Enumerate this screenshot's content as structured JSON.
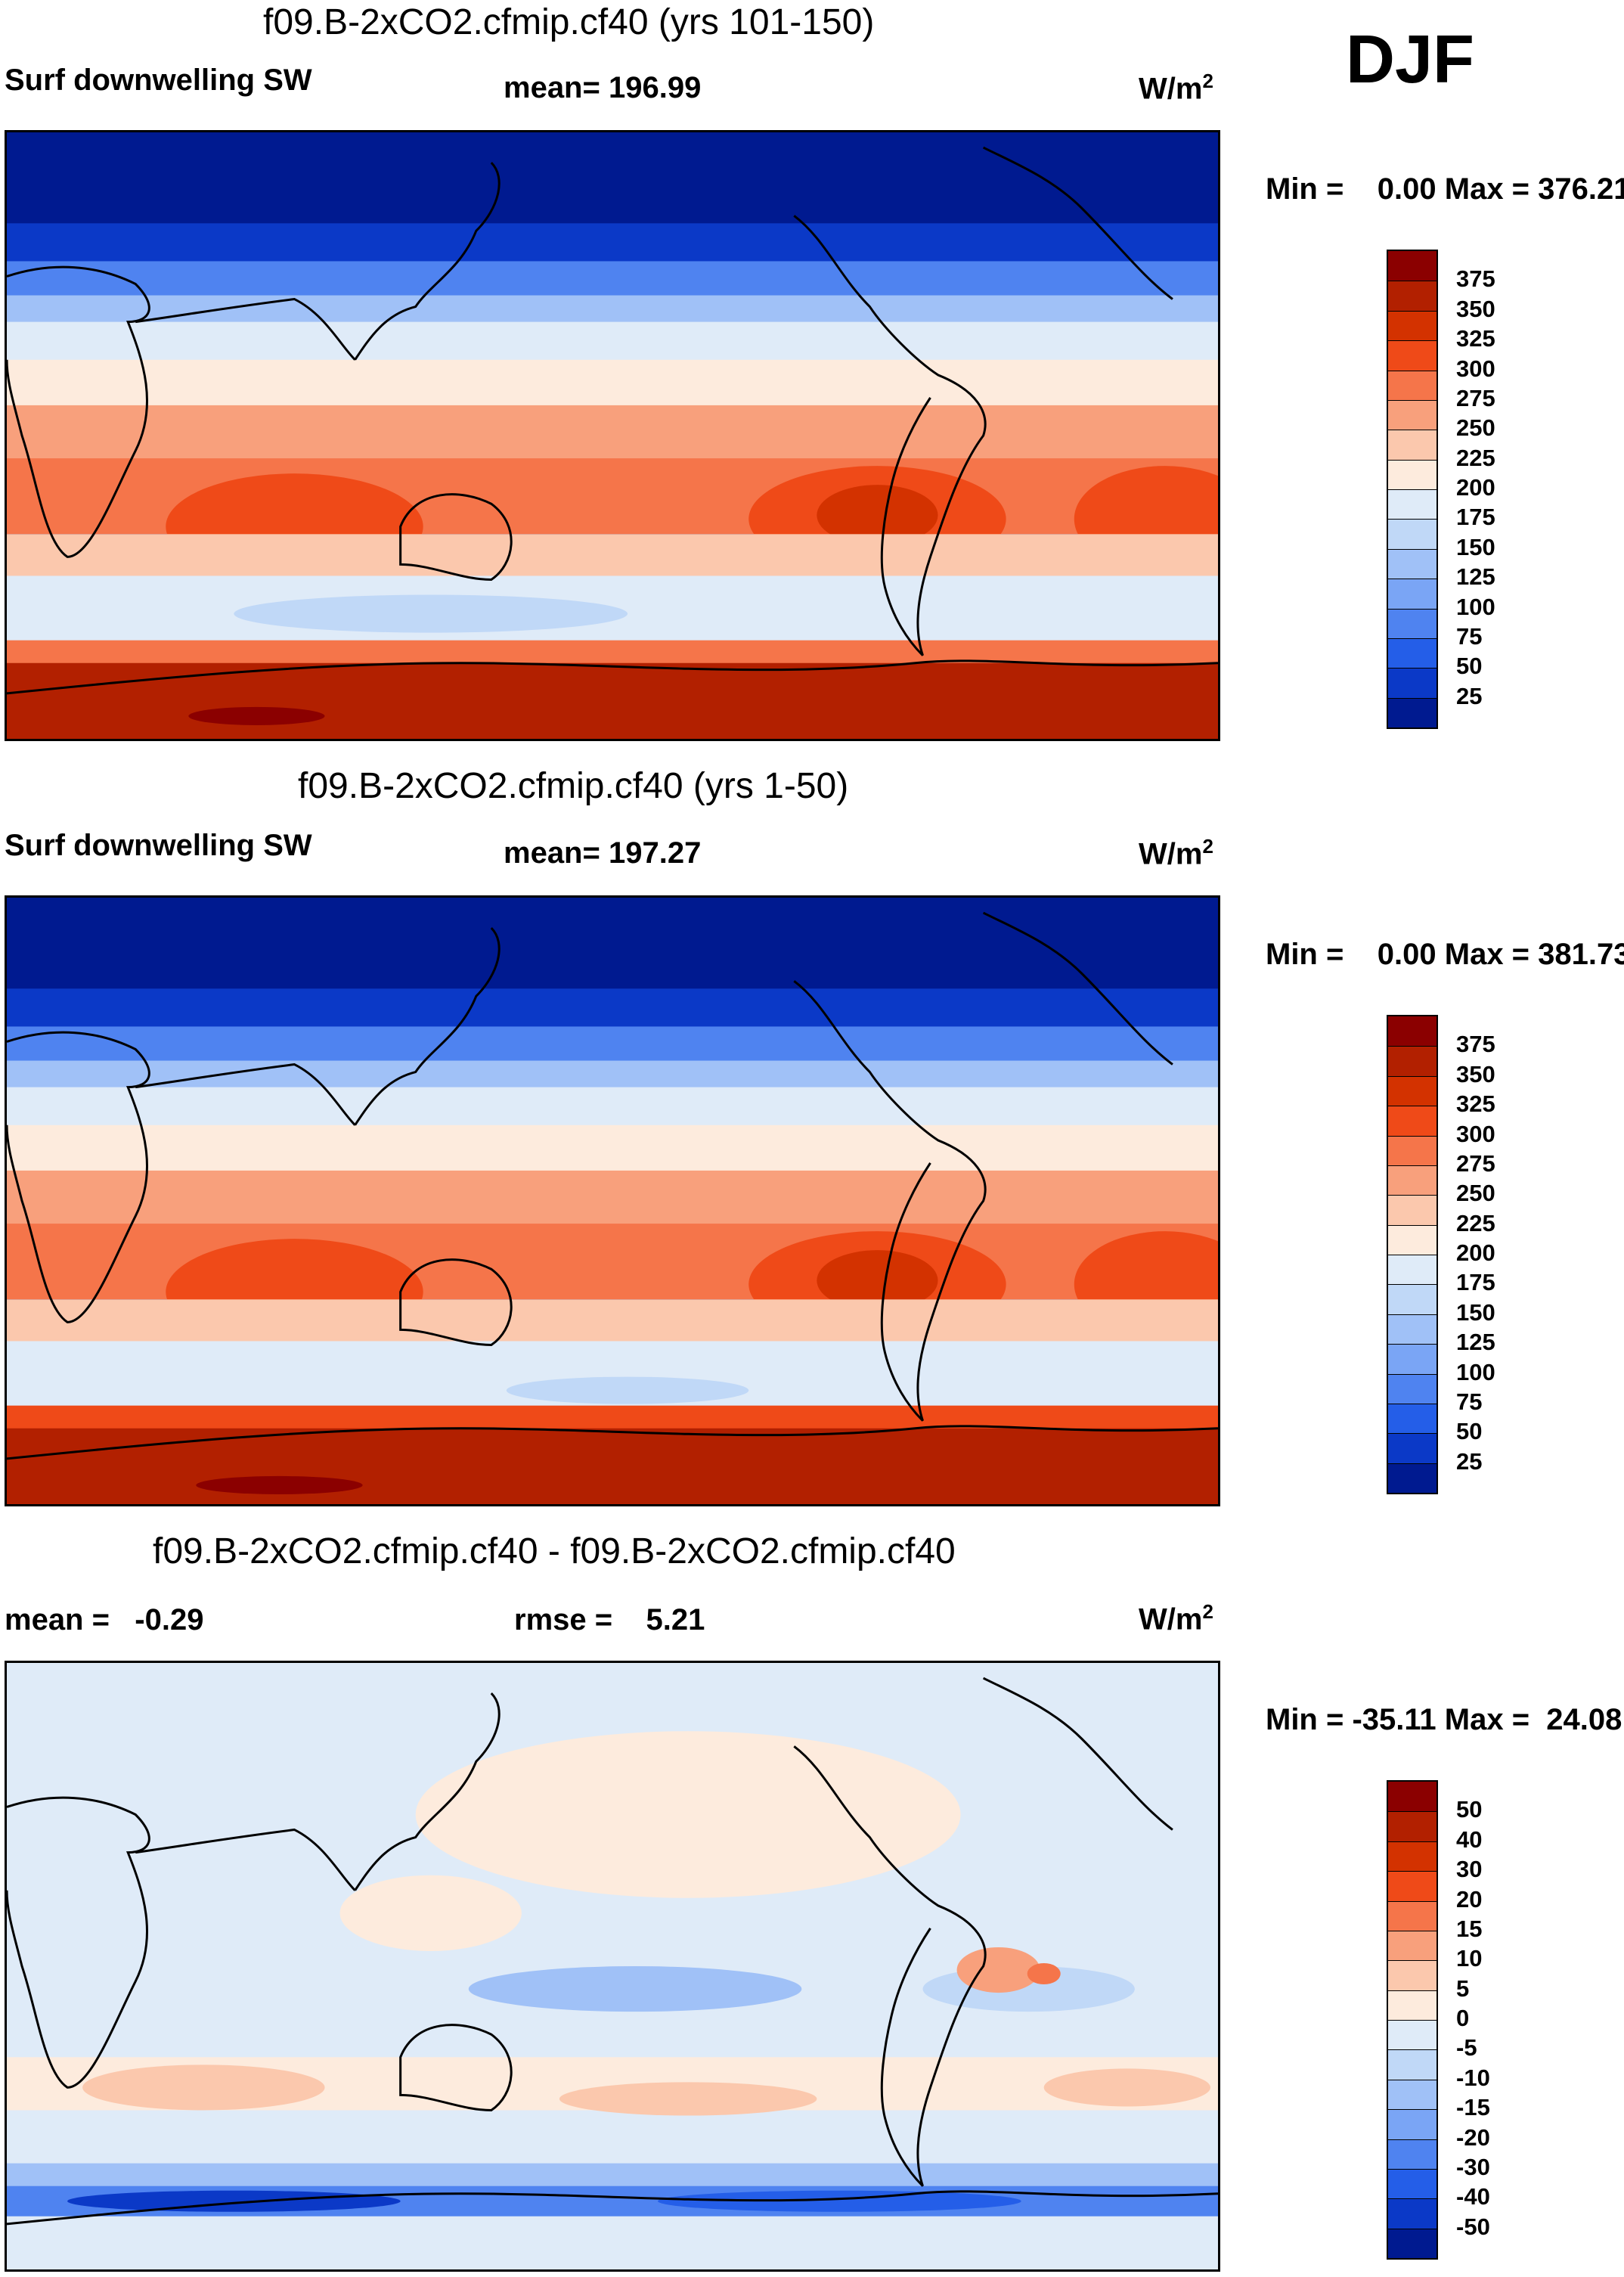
{
  "season": "DJF",
  "panels": [
    {
      "title": "f09.B-2xCO2.cfmip.cf40 (yrs 101-150)",
      "variable": "Surf downwelling SW",
      "stat": "mean= 196.99",
      "units_base": "W/m",
      "units_exp": "2",
      "minmax": "Min =    0.00 Max = 376.21",
      "colorbar": {
        "colors": [
          "#8b0000",
          "#b22000",
          "#d33200",
          "#ef4a18",
          "#f5754a",
          "#f8a07c",
          "#fbc8ad",
          "#fdebdd",
          "#dfebf8",
          "#c0d8f7",
          "#a0c1f7",
          "#7aa5f5",
          "#4f83f0",
          "#245ee8",
          "#0b39c7",
          "#001a90"
        ],
        "labels": [
          "375",
          "350",
          "325",
          "300",
          "275",
          "250",
          "225",
          "200",
          "175",
          "150",
          "125",
          "100",
          "75",
          "50",
          "25"
        ]
      }
    },
    {
      "title": "f09.B-2xCO2.cfmip.cf40 (yrs 1-50)",
      "variable": "Surf downwelling SW",
      "stat": "mean= 197.27",
      "units_base": "W/m",
      "units_exp": "2",
      "minmax": "Min =    0.00 Max = 381.73",
      "colorbar": {
        "colors": [
          "#8b0000",
          "#b22000",
          "#d33200",
          "#ef4a18",
          "#f5754a",
          "#f8a07c",
          "#fbc8ad",
          "#fdebdd",
          "#dfebf8",
          "#c0d8f7",
          "#a0c1f7",
          "#7aa5f5",
          "#4f83f0",
          "#245ee8",
          "#0b39c7",
          "#001a90"
        ],
        "labels": [
          "375",
          "350",
          "325",
          "300",
          "275",
          "250",
          "225",
          "200",
          "175",
          "150",
          "125",
          "100",
          "75",
          "50",
          "25"
        ]
      }
    },
    {
      "title": "f09.B-2xCO2.cfmip.cf40 - f09.B-2xCO2.cfmip.cf40",
      "variable": "mean =   -0.29",
      "stat": "rmse =    5.21",
      "units_base": "W/m",
      "units_exp": "2",
      "minmax": "Min = -35.11 Max =  24.08",
      "colorbar": {
        "colors": [
          "#8b0000",
          "#b22000",
          "#d33200",
          "#ef4a18",
          "#f5754a",
          "#f8a07c",
          "#fbc8ad",
          "#fdebdd",
          "#dfebf8",
          "#c0d8f7",
          "#a0c1f7",
          "#7aa5f5",
          "#4f83f0",
          "#245ee8",
          "#0b39c7",
          "#001a90"
        ],
        "labels": [
          "50",
          "40",
          "30",
          "20",
          "15",
          "10",
          "5",
          "0",
          "-5",
          "-10",
          "-15",
          "-20",
          "-30",
          "-40",
          "-50"
        ]
      }
    }
  ]
}
